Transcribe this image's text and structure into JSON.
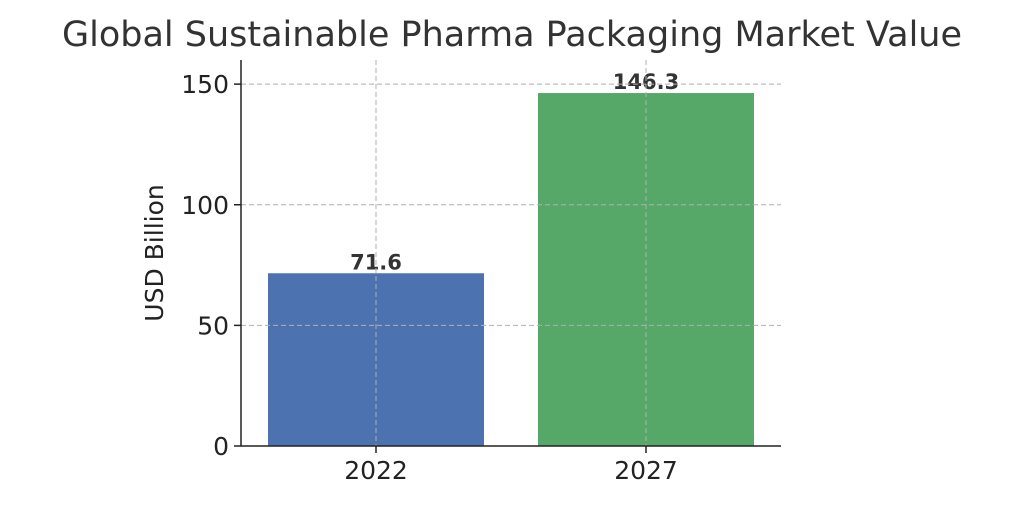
{
  "chart_data": {
    "type": "bar",
    "title": "Global Sustainable Pharma Packaging Market Value",
    "xlabel": "",
    "ylabel": "USD Billion",
    "categories": [
      "2022",
      "2027"
    ],
    "values": [
      71.6,
      146.3
    ],
    "value_labels": [
      "71.6",
      "146.3"
    ],
    "colors": [
      "#4c72b0",
      "#55a868"
    ],
    "ylim": [
      0,
      160
    ],
    "yticks": [
      0,
      50,
      100,
      150
    ],
    "ytick_labels": [
      "0",
      "50",
      "100",
      "150"
    ],
    "grid": true,
    "legend": "none"
  }
}
